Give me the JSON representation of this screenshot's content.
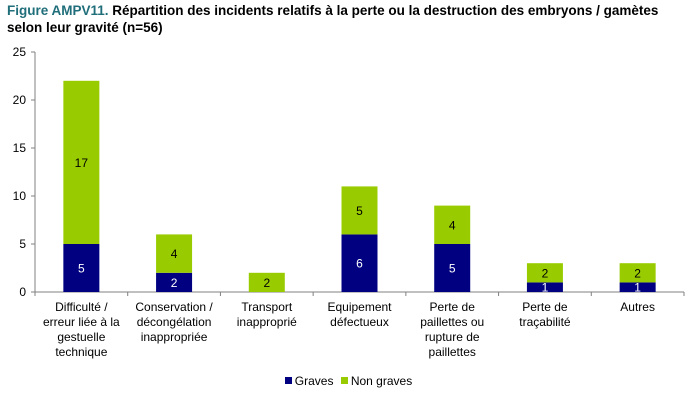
{
  "title": {
    "prefix": "Figure AMPV11.",
    "text": " Répartition des incidents relatifs à la perte ou la destruction des embryons / gamètes selon leur gravité (n=56)"
  },
  "chart_data": {
    "type": "bar",
    "stacked": true,
    "categories": [
      [
        "Difficulté /",
        "erreur liée à la",
        "gestuelle",
        "technique"
      ],
      [
        "Conservation /",
        "décongélation",
        "inappropriée"
      ],
      [
        "Transport",
        "inapproprié"
      ],
      [
        "Equipement",
        "défectueux"
      ],
      [
        "Perte de",
        "paillettes ou",
        "rupture de",
        "paillettes"
      ],
      [
        "Perte de",
        "traçabilité"
      ],
      [
        "Autres"
      ]
    ],
    "series": [
      {
        "name": "Graves",
        "color": "#000080",
        "label_color": "#ffffff",
        "values": [
          5,
          2,
          0,
          6,
          5,
          1,
          1
        ]
      },
      {
        "name": "Non graves",
        "color": "#99cc00",
        "label_color": "#000000",
        "values": [
          17,
          4,
          2,
          5,
          4,
          2,
          2
        ]
      }
    ],
    "ylim": [
      0,
      25
    ],
    "yticks": [
      0,
      5,
      10,
      15,
      20,
      25
    ],
    "grid": false,
    "legend": "bottom"
  }
}
